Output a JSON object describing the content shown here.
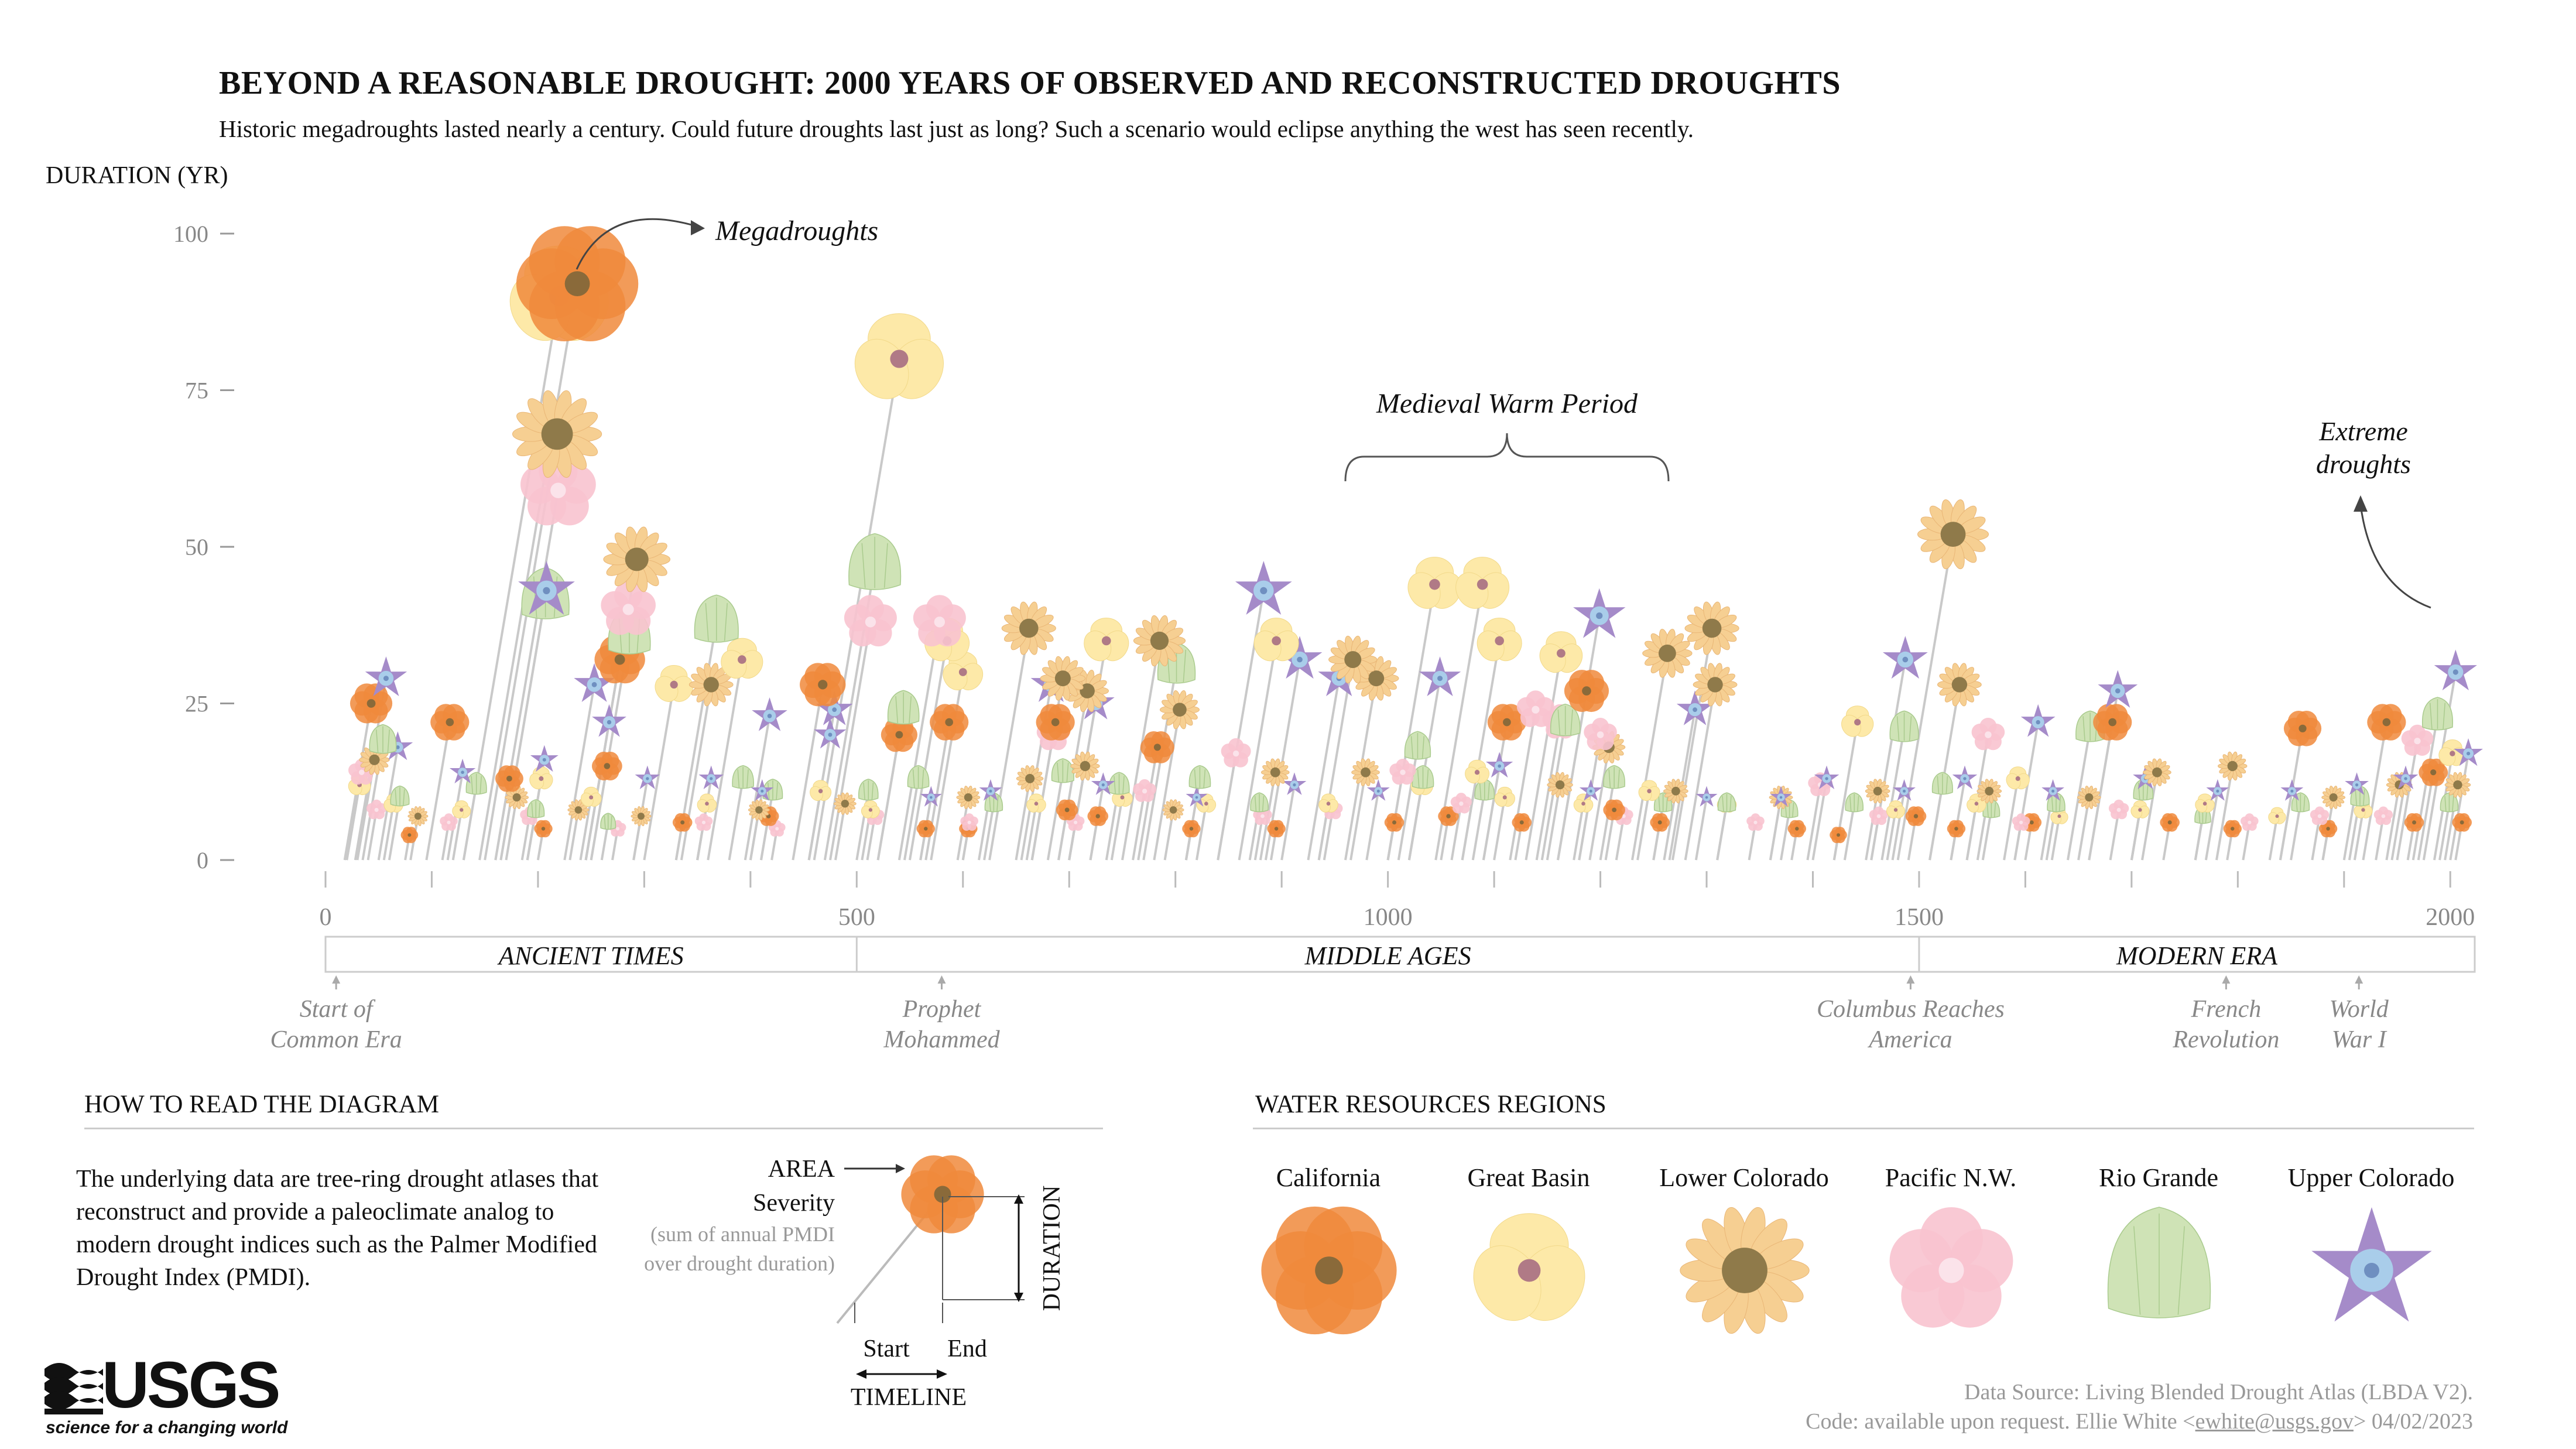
{
  "header": {
    "title": "BEYOND A REASONABLE DROUGHT: 2000 YEARS OF OBSERVED AND RECONSTRUCTED DROUGHTS",
    "subtitle": "Historic megadroughts lasted nearly a century. Could future droughts last just as long? Such a scenario would eclipse anything the west has seen recently."
  },
  "chart_data": {
    "type": "scatter",
    "ylabel": "DURATION (YR)",
    "xlim": [
      0,
      2023
    ],
    "ylim": [
      0,
      100
    ],
    "y_ticks": [
      "0",
      "25",
      "50",
      "75",
      "100"
    ],
    "x_ticks": [
      "0",
      "500",
      "1000",
      "1500",
      "2000"
    ],
    "eras": [
      "ANCIENT TIMES",
      "MIDDLE AGES",
      "MODERN ERA"
    ],
    "events": [
      {
        "label": "Start of Common Era",
        "line1": "Start of",
        "line2": "Common Era",
        "year": 10
      },
      {
        "label": "Prophet Mohammed",
        "line1": "Prophet",
        "line2": "Mohammed",
        "year": 580
      },
      {
        "label": "Columbus Reaches America",
        "line1": "Columbus Reaches",
        "line2": "America",
        "year": 1492
      },
      {
        "label": "French Revolution",
        "line1": "French",
        "line2": "Revolution",
        "year": 1789
      },
      {
        "label": "World War I",
        "line1": "World",
        "line2": "War I",
        "year": 1914
      }
    ],
    "annotations": {
      "megadroughts": "Megadroughts",
      "medieval": "Medieval Warm Period",
      "extreme": "Extreme droughts",
      "extreme_line1": "Extreme",
      "extreme_line2": "droughts"
    },
    "series": [
      {
        "name": "California",
        "color": "#f08a3c",
        "points": [
          [
            18,
            25
          ],
          [
            95,
            22
          ],
          [
            145,
            92
          ],
          [
            160,
            13
          ],
          [
            245,
            32
          ],
          [
            250,
            15
          ],
          [
            440,
            28
          ],
          [
            520,
            20
          ],
          [
            565,
            22
          ],
          [
            665,
            22
          ],
          [
            765,
            18
          ],
          [
            1090,
            22
          ],
          [
            1160,
            27
          ],
          [
            1490,
            7
          ],
          [
            1660,
            22
          ],
          [
            1840,
            21
          ],
          [
            1918,
            22
          ],
          [
            1970,
            14
          ],
          [
            75,
            4
          ],
          [
            200,
            5
          ],
          [
            330,
            6
          ],
          [
            410,
            7
          ],
          [
            560,
            5
          ],
          [
            600,
            5
          ],
          [
            690,
            8
          ],
          [
            720,
            7
          ],
          [
            810,
            5
          ],
          [
            890,
            5
          ],
          [
            1000,
            6
          ],
          [
            1050,
            7
          ],
          [
            1120,
            6
          ],
          [
            1205,
            8
          ],
          [
            1250,
            6
          ],
          [
            1380,
            5
          ],
          [
            1420,
            4
          ],
          [
            1530,
            5
          ],
          [
            1600,
            6
          ],
          [
            1730,
            6
          ],
          [
            1790,
            5
          ],
          [
            1880,
            5
          ],
          [
            1960,
            6
          ],
          [
            2005,
            6
          ]
        ]
      },
      {
        "name": "Great Basin",
        "color": "#fde9a8",
        "points": [
          [
            460,
            80
          ],
          [
            130,
            90
          ],
          [
            300,
            28
          ],
          [
            360,
            32
          ],
          [
            550,
            35
          ],
          [
            570,
            30
          ],
          [
            700,
            35
          ],
          [
            860,
            35
          ],
          [
            1000,
            44
          ],
          [
            1045,
            44
          ],
          [
            1070,
            35
          ],
          [
            1130,
            33
          ],
          [
            1020,
            12
          ],
          [
            1070,
            14
          ],
          [
            1420,
            22
          ],
          [
            1580,
            13
          ],
          [
            20,
            12
          ],
          [
            55,
            9
          ],
          [
            120,
            8
          ],
          [
            190,
            13
          ],
          [
            240,
            10
          ],
          [
            350,
            9
          ],
          [
            455,
            11
          ],
          [
            505,
            8
          ],
          [
            660,
            9
          ],
          [
            740,
            10
          ],
          [
            820,
            9
          ],
          [
            935,
            9
          ],
          [
            1100,
            10
          ],
          [
            1175,
            9
          ],
          [
            1235,
            11
          ],
          [
            1310,
            9
          ],
          [
            1470,
            8
          ],
          [
            1545,
            9
          ],
          [
            1625,
            7
          ],
          [
            1700,
            8
          ],
          [
            1760,
            9
          ],
          [
            1830,
            7
          ],
          [
            1910,
            8
          ],
          [
            1985,
            17
          ]
        ]
      },
      {
        "name": "Lower Colorado",
        "color": "#f6cf92",
        "points": [
          [
            150,
            68
          ],
          [
            245,
            48
          ],
          [
            335,
            28
          ],
          [
            625,
            37
          ],
          [
            665,
            29
          ],
          [
            690,
            27
          ],
          [
            750,
            35
          ],
          [
            780,
            24
          ],
          [
            935,
            32
          ],
          [
            960,
            29
          ],
          [
            1230,
            33
          ],
          [
            1268,
            37
          ],
          [
            1280,
            28
          ],
          [
            1480,
            52
          ],
          [
            1510,
            28
          ],
          [
            1190,
            18
          ],
          [
            1710,
            14
          ],
          [
            1780,
            15
          ],
          [
            30,
            16
          ],
          [
            80,
            7
          ],
          [
            170,
            10
          ],
          [
            230,
            8
          ],
          [
            290,
            7
          ],
          [
            400,
            8
          ],
          [
            480,
            9
          ],
          [
            595,
            10
          ],
          [
            650,
            13
          ],
          [
            700,
            15
          ],
          [
            790,
            8
          ],
          [
            880,
            14
          ],
          [
            965,
            14
          ],
          [
            1150,
            12
          ],
          [
            1260,
            11
          ],
          [
            1360,
            10
          ],
          [
            1450,
            11
          ],
          [
            1555,
            11
          ],
          [
            1650,
            10
          ],
          [
            1880,
            10
          ],
          [
            1940,
            12
          ],
          [
            1995,
            12
          ]
        ]
      },
      {
        "name": "Pacific N.W.",
        "color": "#f8c3cf",
        "points": [
          [
            160,
            59
          ],
          [
            245,
            40
          ],
          [
            475,
            38
          ],
          [
            540,
            38
          ],
          [
            665,
            20
          ],
          [
            840,
            17
          ],
          [
            1000,
            14
          ],
          [
            1115,
            24
          ],
          [
            1140,
            22
          ],
          [
            1180,
            20
          ],
          [
            1395,
            12
          ],
          [
            1545,
            20
          ],
          [
            1950,
            19
          ],
          [
            20,
            14
          ],
          [
            40,
            8
          ],
          [
            110,
            6
          ],
          [
            185,
            7
          ],
          [
            270,
            5
          ],
          [
            350,
            6
          ],
          [
            420,
            5
          ],
          [
            510,
            7
          ],
          [
            600,
            6
          ],
          [
            700,
            6
          ],
          [
            760,
            11
          ],
          [
            875,
            7
          ],
          [
            940,
            8
          ],
          [
            1060,
            9
          ],
          [
            1215,
            7
          ],
          [
            1340,
            6
          ],
          [
            1455,
            7
          ],
          [
            1590,
            6
          ],
          [
            1680,
            8
          ],
          [
            1805,
            6
          ],
          [
            1870,
            7
          ],
          [
            1930,
            7
          ]
        ]
      },
      {
        "name": "Rio Grande",
        "color": "#cfe3b6",
        "points": [
          [
            165,
            42
          ],
          [
            250,
            36
          ],
          [
            330,
            38
          ],
          [
            470,
            47
          ],
          [
            520,
            24
          ],
          [
            770,
            31
          ],
          [
            1010,
            18
          ],
          [
            1145,
            22
          ],
          [
            1465,
            21
          ],
          [
            1640,
            21
          ],
          [
            1965,
            23
          ],
          [
            35,
            19
          ],
          [
            60,
            10
          ],
          [
            130,
            12
          ],
          [
            190,
            8
          ],
          [
            260,
            6
          ],
          [
            380,
            13
          ],
          [
            410,
            11
          ],
          [
            500,
            11
          ],
          [
            545,
            13
          ],
          [
            620,
            9
          ],
          [
            680,
            14
          ],
          [
            735,
            12
          ],
          [
            810,
            13
          ],
          [
            870,
            9
          ],
          [
            1020,
            13
          ],
          [
            1080,
            11
          ],
          [
            1200,
            13
          ],
          [
            1250,
            9
          ],
          [
            1310,
            9
          ],
          [
            1370,
            8
          ],
          [
            1430,
            9
          ],
          [
            1510,
            12
          ],
          [
            1560,
            8
          ],
          [
            1620,
            9
          ],
          [
            1700,
            11
          ],
          [
            1760,
            7
          ],
          [
            1850,
            9
          ],
          [
            1905,
            10
          ],
          [
            1990,
            9
          ]
        ]
      },
      {
        "name": "Upper Colorado",
        "color": "#a58bc9",
        "points": [
          [
            28,
            29
          ],
          [
            165,
            43
          ],
          [
            225,
            28
          ],
          [
            245,
            22
          ],
          [
            395,
            23
          ],
          [
            455,
            24
          ],
          [
            455,
            20
          ],
          [
            655,
            28
          ],
          [
            700,
            25
          ],
          [
            840,
            43
          ],
          [
            885,
            32
          ],
          [
            925,
            29
          ],
          [
            1020,
            29
          ],
          [
            1160,
            39
          ],
          [
            1265,
            24
          ],
          [
            1455,
            32
          ],
          [
            1660,
            27
          ],
          [
            1590,
            22
          ],
          [
            1975,
            30
          ],
          [
            50,
            18
          ],
          [
            115,
            14
          ],
          [
            190,
            16
          ],
          [
            290,
            13
          ],
          [
            350,
            13
          ],
          [
            400,
            11
          ],
          [
            560,
            10
          ],
          [
            615,
            11
          ],
          [
            720,
            12
          ],
          [
            810,
            10
          ],
          [
            900,
            12
          ],
          [
            980,
            11
          ],
          [
            1090,
            15
          ],
          [
            1180,
            11
          ],
          [
            1290,
            10
          ],
          [
            1360,
            10
          ],
          [
            1400,
            13
          ],
          [
            1475,
            11
          ],
          [
            1530,
            13
          ],
          [
            1615,
            11
          ],
          [
            1700,
            13
          ],
          [
            1770,
            11
          ],
          [
            1840,
            11
          ],
          [
            1900,
            12
          ],
          [
            1945,
            13
          ],
          [
            2000,
            17
          ]
        ]
      }
    ]
  },
  "howto": {
    "heading": "HOW TO READ THE DIAGRAM",
    "text": "The underlying data are tree-ring drought atlases that reconstruct and provide a paleoclimate analog to modern drought indices such as the Palmer Modified Drought Index (PMDI).",
    "area_label": "AREA",
    "severity_label": "Severity",
    "severity_note_1": "(sum of annual PMDI",
    "severity_note_2": "over drought duration)",
    "duration_label": "DURATION",
    "start_label": "Start",
    "end_label": "End",
    "timeline_label": "TIMELINE"
  },
  "regions": {
    "heading": "WATER RESOURCES REGIONS",
    "items": [
      {
        "label": "California",
        "color": "#f08a3c"
      },
      {
        "label": "Great Basin",
        "color": "#fde9a8"
      },
      {
        "label": "Lower Colorado",
        "color": "#f6cf92"
      },
      {
        "label": "Pacific N.W.",
        "color": "#f8c3cf"
      },
      {
        "label": "Rio Grande",
        "color": "#cfe3b6"
      },
      {
        "label": "Upper Colorado",
        "color": "#a58bc9"
      }
    ]
  },
  "logo": {
    "text": "USGS",
    "tagline": "science for a changing world"
  },
  "footer": {
    "source": "Data Source: Living Blended Drought Atlas (LBDA V2).",
    "code_prefix": "Code: available upon request. Ellie White <",
    "email": "ewhite@usgs.gov",
    "code_suffix": "> 04/02/2023"
  }
}
